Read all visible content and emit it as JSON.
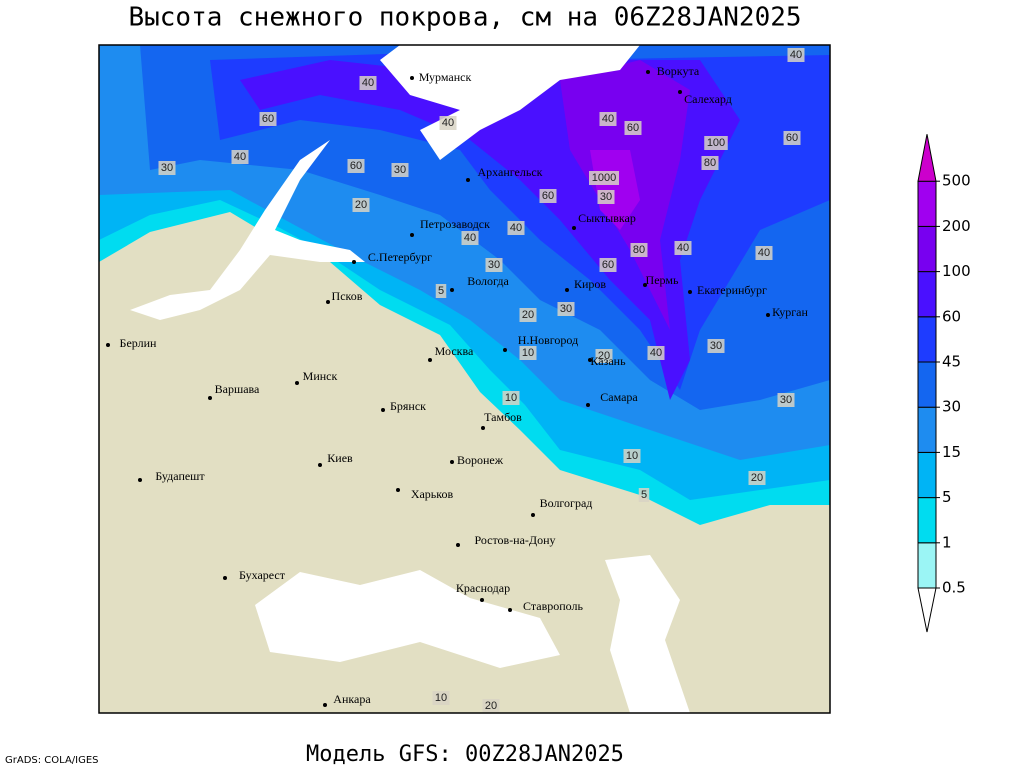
{
  "title": "Высота снежного покрова, см на 06Z28JAN2025",
  "footer": "Модель GFS: 00Z28JAN2025",
  "credit": "GrADS: COLA/IGES",
  "cities": [
    "Мурманск",
    "Воркута",
    "Салехард",
    "Архангельск",
    "Петрозаводск",
    "Сыктывкар",
    "С.Петербург",
    "Вологда",
    "Киров",
    "Пермь",
    "Екатеринбург",
    "Курган",
    "Псков",
    "Москва",
    "Н.Новгород",
    "Казань",
    "Берлин",
    "Минск",
    "Варшава",
    "Брянск",
    "Тамбов",
    "Самара",
    "Киев",
    "Воронеж",
    "Будапешт",
    "Харьков",
    "Волгоград",
    "Ростов-на-Дону",
    "Бухарест",
    "Краснодар",
    "Ставрополь",
    "Анкара"
  ],
  "contour_labels": [
    "40",
    "40",
    "60",
    "40",
    "30",
    "60",
    "30",
    "20",
    "40",
    "40",
    "60",
    "100",
    "1000",
    "80",
    "30",
    "60",
    "40",
    "40",
    "30",
    "40",
    "40",
    "80",
    "60",
    "30",
    "20",
    "40",
    "30",
    "20",
    "10",
    "10",
    "30",
    "10",
    "20",
    "5",
    "5",
    "10",
    "20",
    "60"
  ],
  "legend": {
    "levels": [
      0.5,
      1,
      5,
      15,
      30,
      45,
      60,
      100,
      200,
      500
    ],
    "colors": [
      "#ffffff",
      "#9bf5f5",
      "#00dcf0",
      "#00b4f5",
      "#1e8cf0",
      "#1466f0",
      "#1e3cff",
      "#4a10ff",
      "#7800f0",
      "#a000f0",
      "#cc00cc"
    ]
  }
}
